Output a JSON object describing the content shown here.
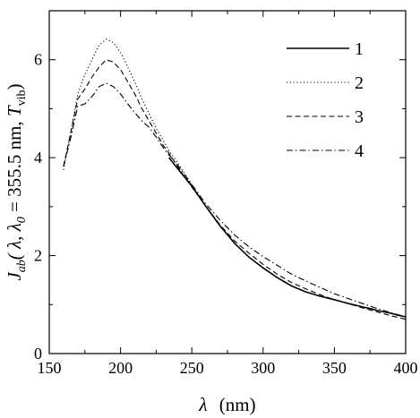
{
  "chart_data": {
    "type": "line",
    "xlabel": {
      "symbol": "λ",
      "unit": "(nm)"
    },
    "ylabel": {
      "main": "J",
      "sub": "ab",
      "args": "( λ, λ",
      "sub0": "0",
      "eq": " = 355.5 nm, ",
      "t": "T",
      "tsub": "vib",
      "close": ")"
    },
    "xlim": [
      150,
      400
    ],
    "ylim": [
      0,
      7
    ],
    "xticks": [
      150,
      200,
      250,
      300,
      350,
      400
    ],
    "xtick_labels": [
      "150",
      "200",
      "250",
      "300",
      "350",
      "400"
    ],
    "yticks": [
      0,
      2,
      4,
      6
    ],
    "ytick_labels": [
      "0",
      "2",
      "4",
      "6"
    ],
    "grid": false,
    "legend_position": "top-right",
    "series": [
      {
        "name": "1",
        "style": "solid",
        "x": [
          234,
          240,
          250,
          260,
          270,
          280,
          290,
          300,
          310,
          320,
          330,
          340,
          350,
          360,
          366,
          370,
          375,
          380,
          385,
          390,
          395,
          400
        ],
        "y": [
          4.0,
          3.78,
          3.42,
          3.0,
          2.6,
          2.25,
          1.97,
          1.75,
          1.55,
          1.38,
          1.26,
          1.17,
          1.1,
          1.02,
          0.98,
          0.95,
          0.92,
          0.88,
          0.85,
          0.82,
          0.78,
          0.75
        ]
      },
      {
        "name": "2",
        "style": "dotted",
        "x": [
          160,
          165,
          170,
          175,
          180,
          185,
          190,
          195,
          200,
          205,
          210,
          215,
          220,
          225,
          230,
          235,
          240,
          245,
          250
        ],
        "y": [
          3.75,
          4.5,
          5.3,
          5.7,
          6.0,
          6.3,
          6.42,
          6.35,
          6.15,
          5.85,
          5.55,
          5.2,
          4.9,
          4.6,
          4.35,
          4.1,
          3.9,
          3.68,
          3.45
        ]
      },
      {
        "name": "3",
        "style": "dashed",
        "x": [
          160,
          165,
          170,
          175,
          180,
          185,
          190,
          195,
          200,
          205,
          210,
          215,
          220,
          225,
          230,
          235,
          240,
          245,
          250,
          260,
          270,
          280,
          290,
          300,
          310,
          320,
          330,
          340,
          350,
          360,
          370,
          380,
          390,
          400
        ],
        "y": [
          3.82,
          4.5,
          5.2,
          5.4,
          5.65,
          5.85,
          6.0,
          5.95,
          5.8,
          5.55,
          5.3,
          5.0,
          4.75,
          4.5,
          4.25,
          4.05,
          3.82,
          3.6,
          3.4,
          3.0,
          2.62,
          2.3,
          2.05,
          1.82,
          1.62,
          1.45,
          1.32,
          1.2,
          1.1,
          1.02,
          0.93,
          0.85,
          0.77,
          0.7
        ]
      },
      {
        "name": "4",
        "style": "dashdot",
        "x": [
          160,
          165,
          170,
          175,
          180,
          185,
          190,
          195,
          200,
          205,
          210,
          215,
          220,
          225,
          230,
          235,
          240,
          245,
          250,
          260,
          270,
          280,
          290,
          300,
          310,
          320,
          330,
          340,
          350,
          360,
          370,
          380,
          390,
          400
        ],
        "y": [
          3.82,
          4.4,
          5.05,
          5.1,
          5.25,
          5.45,
          5.52,
          5.45,
          5.3,
          5.1,
          4.92,
          4.75,
          4.62,
          4.42,
          4.2,
          4.02,
          3.85,
          3.65,
          3.45,
          3.05,
          2.72,
          2.42,
          2.18,
          1.98,
          1.8,
          1.62,
          1.48,
          1.35,
          1.22,
          1.12,
          1.02,
          0.92,
          0.83,
          0.75
        ]
      }
    ]
  }
}
